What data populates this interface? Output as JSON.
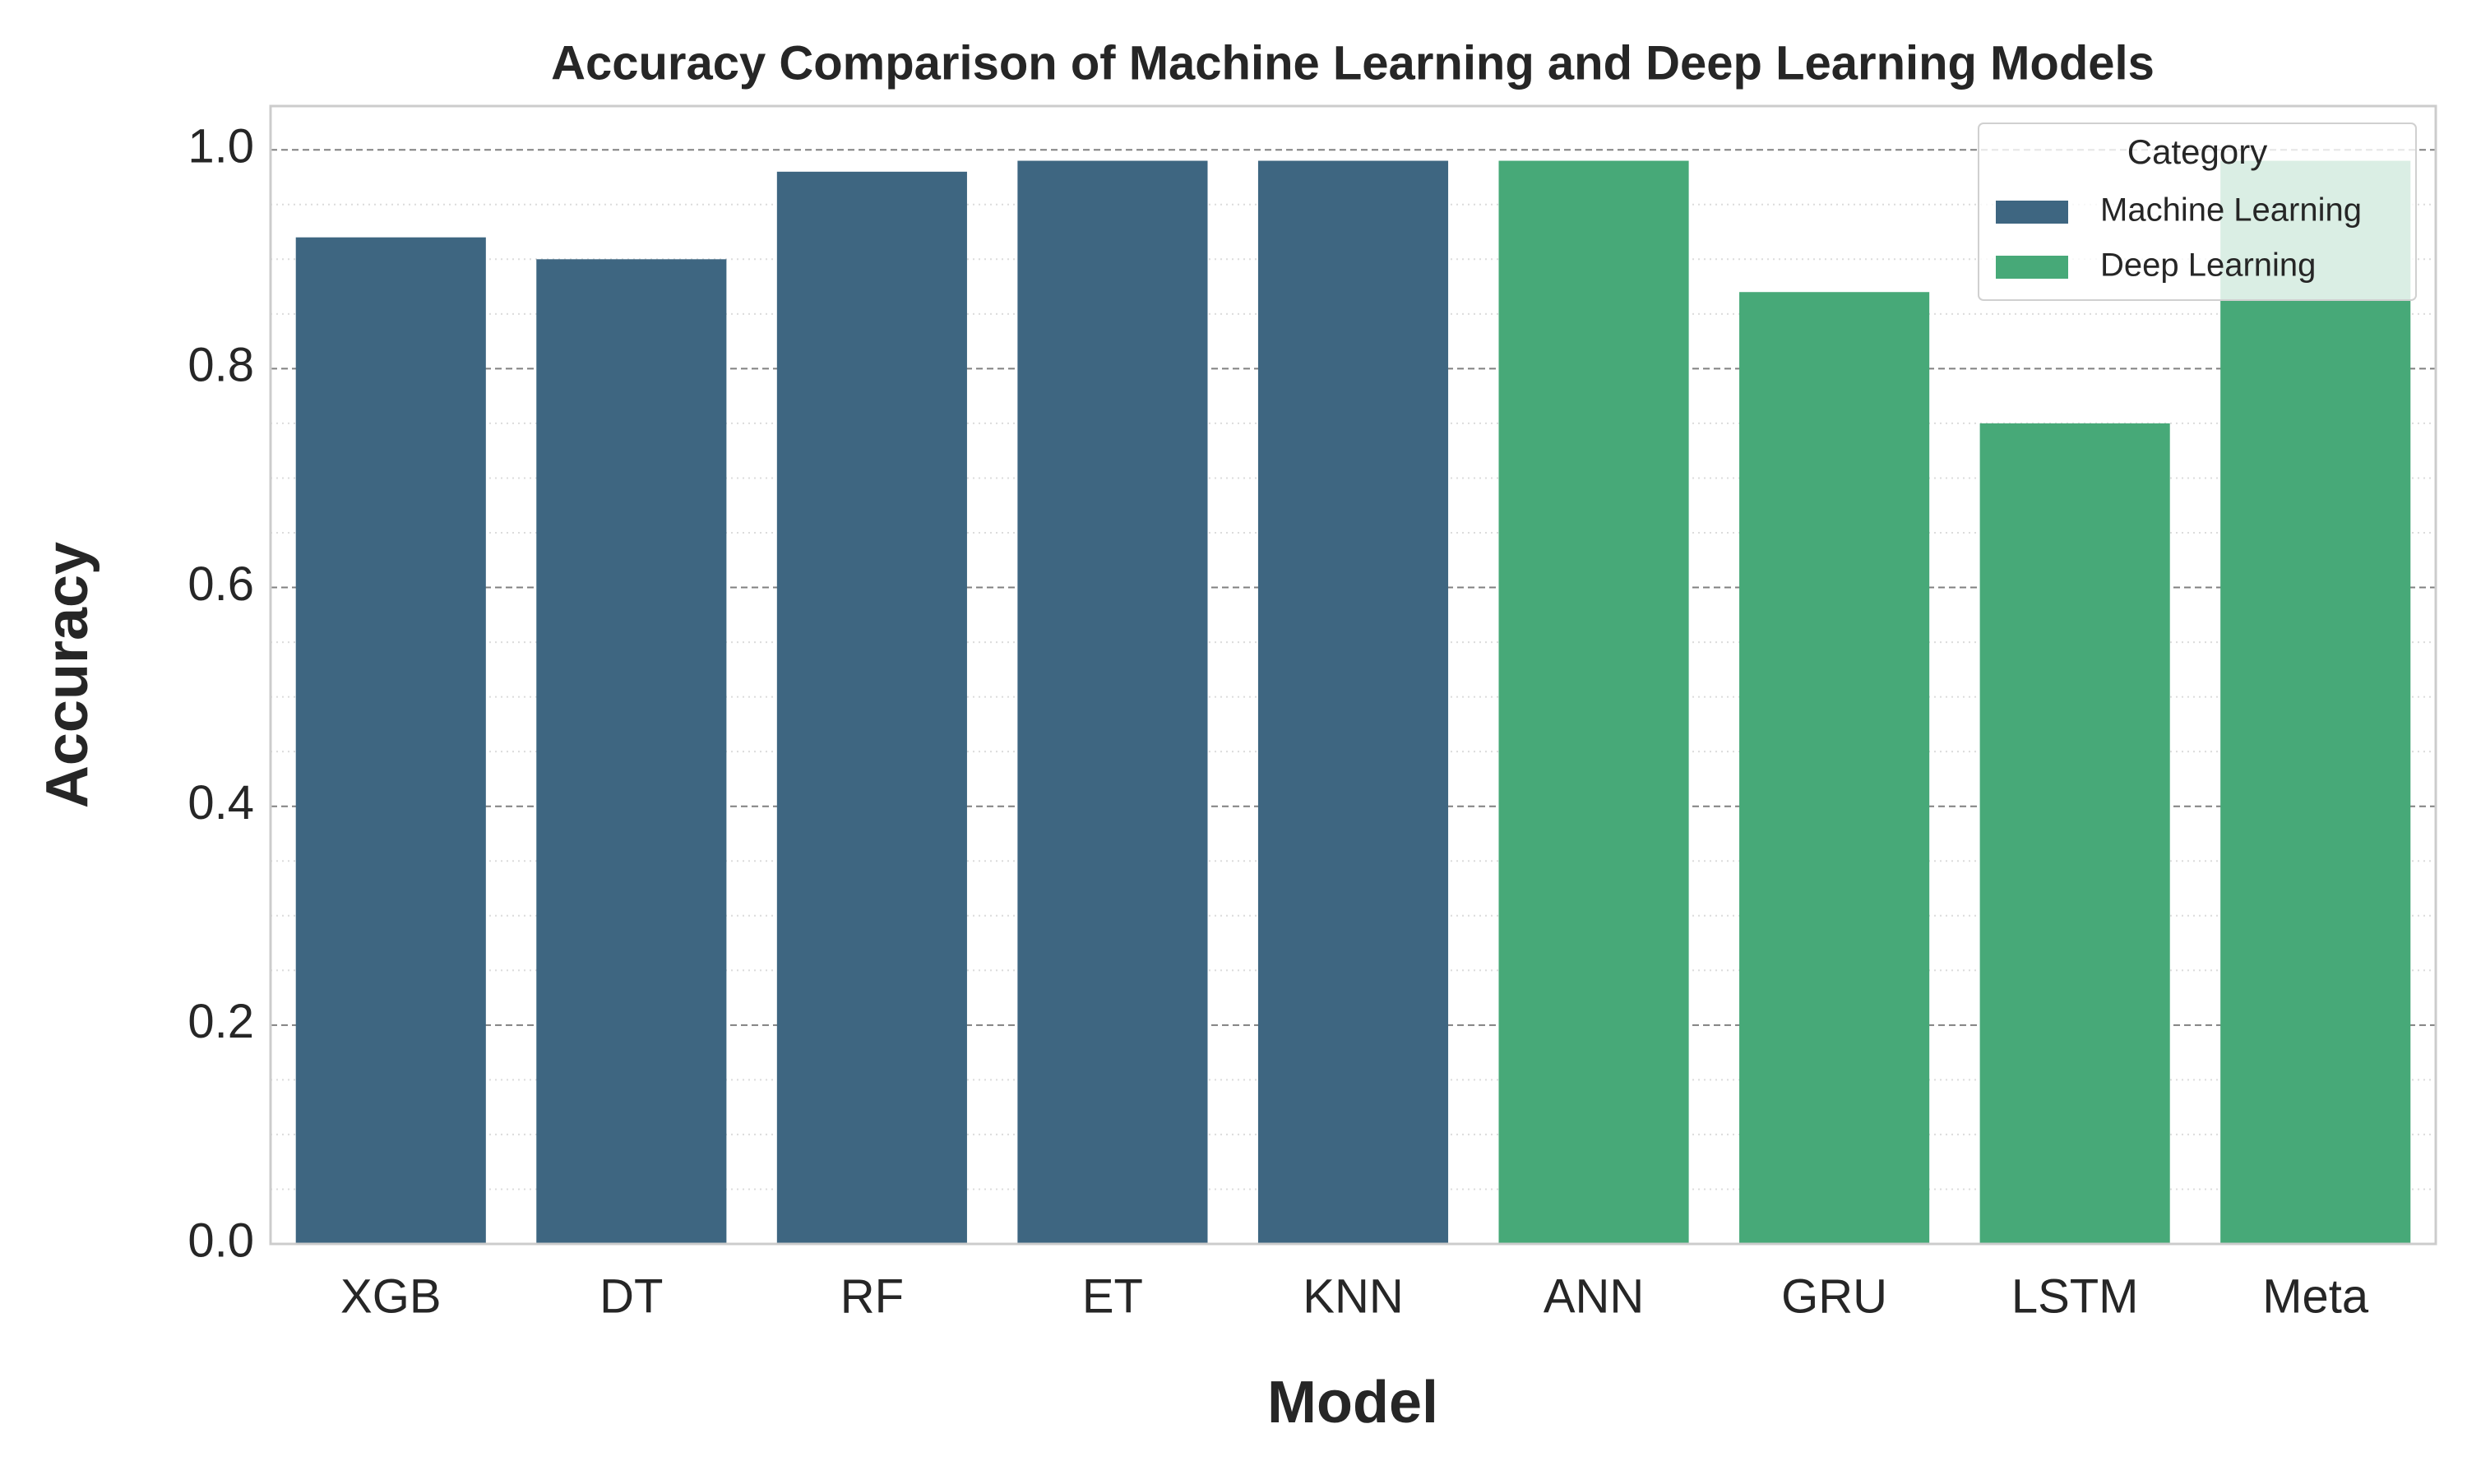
{
  "chart_data": {
    "type": "bar",
    "title": "Accuracy Comparison of Machine Learning and Deep Learning Models",
    "x_label": "Model",
    "y_label": "Accuracy",
    "categories": [
      "XGB",
      "DT",
      "RF",
      "ET",
      "KNN",
      "ANN",
      "GRU",
      "LSTM",
      "Meta"
    ],
    "series": [
      {
        "name": "Machine Learning",
        "color": "#3e6681",
        "values": [
          0.92,
          0.9,
          0.98,
          0.99,
          0.99,
          null,
          null,
          null,
          null
        ]
      },
      {
        "name": "Deep Learning",
        "color": "#47a978",
        "values": [
          null,
          null,
          null,
          null,
          null,
          0.99,
          0.87,
          0.75,
          0.99
        ]
      }
    ],
    "legend_title": "Category",
    "legend": "upper right",
    "ylim": [
      0,
      1.04
    ],
    "yticks": [
      {
        "value": 0,
        "label": "0.0"
      },
      {
        "value": 0.2,
        "label": "0.2"
      },
      {
        "value": 0.4,
        "label": "0.4"
      },
      {
        "value": 0.6,
        "label": "0.6"
      },
      {
        "value": 0.8,
        "label": "0.8"
      },
      {
        "value": 1,
        "label": "1.0"
      }
    ],
    "minor_yticks": [
      0.05,
      0.1,
      0.15,
      0.25,
      0.3,
      0.35,
      0.45,
      0.5,
      0.55,
      0.65,
      0.7,
      0.75,
      0.85,
      0.9,
      0.95
    ],
    "grid": true
  }
}
